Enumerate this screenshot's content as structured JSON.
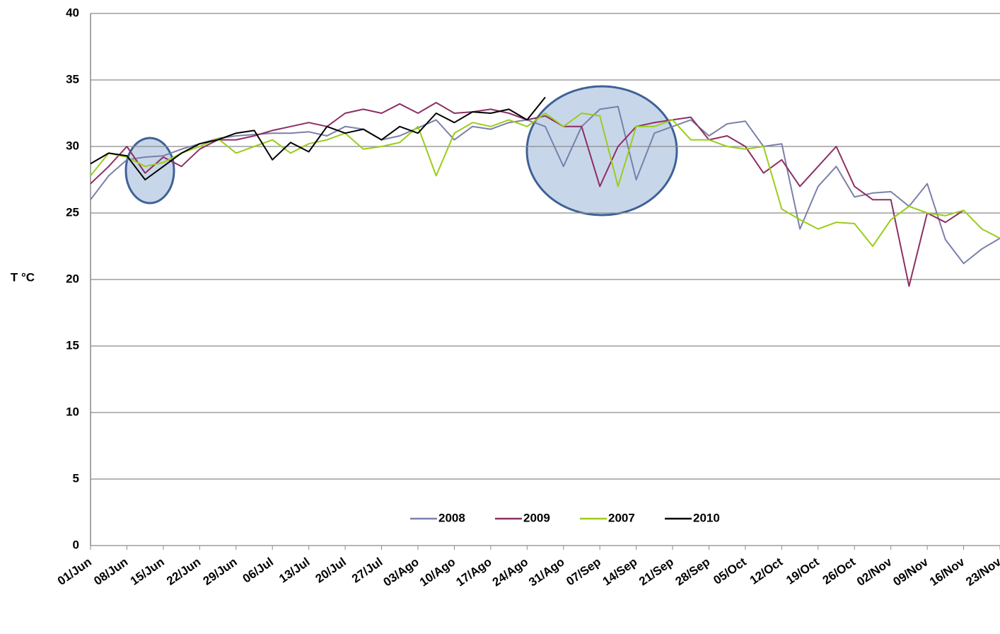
{
  "chart_data": {
    "type": "line",
    "y_label": "T °C",
    "categories": [
      "01/Jun",
      null,
      "08/Jun",
      null,
      "15/Jun",
      null,
      "22/Jun",
      null,
      "29/Jun",
      null,
      "06/Jul",
      null,
      "13/Jul",
      null,
      "20/Jul",
      null,
      "27/Jul",
      null,
      "03/Ago",
      null,
      "10/Ago",
      null,
      "17/Ago",
      null,
      "24/Ago",
      null,
      "31/Ago",
      null,
      "07/Sep",
      null,
      "14/Sep",
      null,
      "21/Sep",
      null,
      "28/Sep",
      null,
      "05/Oct",
      null,
      "12/Oct",
      null,
      "19/Oct",
      null,
      "26/Oct",
      null,
      "02/Nov",
      null,
      "09/Nov",
      null,
      "16/Nov",
      null,
      "23/Nov"
    ],
    "series": [
      {
        "name": "2008",
        "color": "#7b7fab",
        "values": [
          26,
          27.8,
          29,
          29.2,
          29.3,
          29.8,
          30.2,
          30.6,
          30.8,
          30.9,
          31,
          31,
          31.1,
          30.8,
          31.5,
          31.3,
          30.5,
          30.8,
          31.4,
          32,
          30.5,
          31.5,
          31.3,
          31.8,
          32,
          31.5,
          28.5,
          31.5,
          32.8,
          33,
          27.5,
          31,
          31.5,
          32,
          30.8,
          31.7,
          31.9,
          30,
          30.2,
          23.8,
          27,
          28.5,
          26.2,
          26.5,
          26.6,
          25.5,
          27.2,
          23,
          21.2,
          22.3,
          23.1
        ]
      },
      {
        "name": "2009",
        "color": "#8c2f63",
        "values": [
          27.2,
          28.5,
          30,
          28,
          29.2,
          28.5,
          29.8,
          30.5,
          30.5,
          30.8,
          31.2,
          31.5,
          31.8,
          31.5,
          32.5,
          32.8,
          32.5,
          33.2,
          32.5,
          33.3,
          32.5,
          32.6,
          32.8,
          32.5,
          32,
          32.3,
          31.5,
          31.5,
          27,
          30,
          31.5,
          31.8,
          32,
          32.2,
          30.5,
          30.8,
          30,
          28,
          29,
          27,
          28.5,
          30,
          27,
          26,
          26,
          19.5,
          25,
          24.3,
          25.2,
          null,
          null
        ]
      },
      {
        "name": "2007",
        "color": "#9acd1a",
        "values": [
          27.8,
          29.5,
          29.2,
          28.5,
          28.8,
          29.5,
          30,
          30.6,
          29.5,
          30,
          30.5,
          29.5,
          30.2,
          30.5,
          31,
          29.8,
          30,
          30.3,
          31.5,
          27.8,
          31,
          31.8,
          31.5,
          32,
          31.5,
          32.5,
          31.5,
          32.5,
          32.3,
          27,
          31.5,
          31.5,
          32,
          30.5,
          30.5,
          30,
          29.8,
          30,
          25.3,
          24.5,
          23.8,
          24.3,
          24.2,
          22.5,
          24.5,
          25.5,
          25,
          24.8,
          25.2,
          23.8,
          23.1
        ]
      },
      {
        "name": "2010",
        "color": "#000000",
        "values": [
          28.7,
          29.5,
          29.3,
          27.5,
          28.5,
          29.5,
          30.2,
          30.5,
          31,
          31.2,
          29,
          30.3,
          29.6,
          31.5,
          31,
          31.3,
          30.5,
          31.5,
          31,
          32.5,
          31.8,
          32.6,
          32.5,
          32.8,
          32,
          33.7,
          null,
          null,
          null,
          null,
          null,
          null,
          null,
          null,
          null,
          null,
          null,
          null,
          null,
          null,
          null,
          null,
          null,
          null,
          null,
          null,
          null,
          null,
          null,
          null,
          null
        ]
      }
    ],
    "ylim": [
      0,
      40
    ],
    "yticks": [
      0,
      5,
      10,
      15,
      20,
      25,
      30,
      35,
      40
    ],
    "grid": true,
    "legend": "bottom"
  }
}
